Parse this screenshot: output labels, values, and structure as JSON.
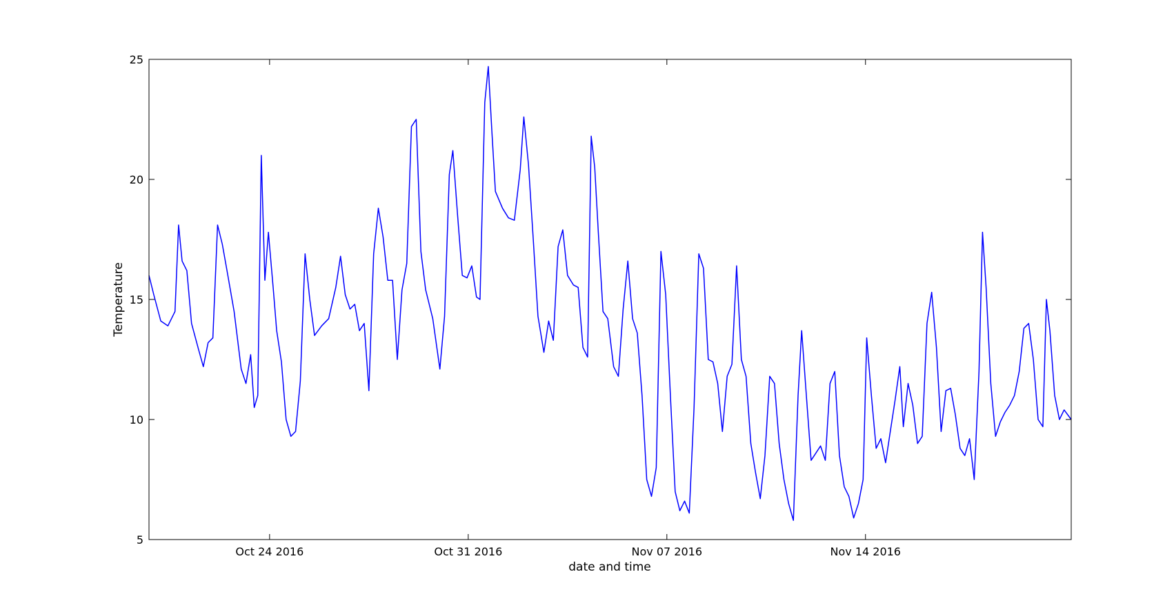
{
  "chart_data": {
    "type": "line",
    "title": "",
    "xlabel": "date and time",
    "ylabel": "Temperature",
    "xlim": [
      "2016-10-19T18:00",
      "2016-11-21T06:00"
    ],
    "ylim": [
      5,
      25
    ],
    "y_ticks": [
      5,
      10,
      15,
      20,
      25
    ],
    "x_ticks": [
      {
        "date": "2016-10-24",
        "label": "Oct 24 2016"
      },
      {
        "date": "2016-10-31",
        "label": "Oct 31 2016"
      },
      {
        "date": "2016-11-07",
        "label": "Nov 07 2016"
      },
      {
        "date": "2016-11-14",
        "label": "Nov 14 2016"
      }
    ],
    "grid": false,
    "legend": "none",
    "series": [
      {
        "color": "#0000ff",
        "points": [
          [
            "2016-10-19T18:00",
            16.0
          ],
          [
            "2016-10-19T22:00",
            15.2
          ],
          [
            "2016-10-20T04:00",
            14.1
          ],
          [
            "2016-10-20T10:00",
            13.9
          ],
          [
            "2016-10-20T16:00",
            14.5
          ],
          [
            "2016-10-20T19:00",
            18.1
          ],
          [
            "2016-10-20T22:00",
            16.6
          ],
          [
            "2016-10-21T02:00",
            16.2
          ],
          [
            "2016-10-21T06:00",
            14.0
          ],
          [
            "2016-10-21T12:00",
            12.9
          ],
          [
            "2016-10-21T16:00",
            12.2
          ],
          [
            "2016-10-21T20:00",
            13.2
          ],
          [
            "2016-10-22T00:00",
            13.4
          ],
          [
            "2016-10-22T04:00",
            18.1
          ],
          [
            "2016-10-22T08:00",
            17.3
          ],
          [
            "2016-10-22T12:00",
            16.2
          ],
          [
            "2016-10-22T18:00",
            14.5
          ],
          [
            "2016-10-23T00:00",
            12.1
          ],
          [
            "2016-10-23T04:00",
            11.5
          ],
          [
            "2016-10-23T08:00",
            12.7
          ],
          [
            "2016-10-23T11:00",
            10.5
          ],
          [
            "2016-10-23T14:00",
            11.0
          ],
          [
            "2016-10-23T17:00",
            21.0
          ],
          [
            "2016-10-23T20:00",
            15.8
          ],
          [
            "2016-10-23T23:00",
            17.8
          ],
          [
            "2016-10-24T03:00",
            15.5
          ],
          [
            "2016-10-24T06:00",
            13.7
          ],
          [
            "2016-10-24T10:00",
            12.4
          ],
          [
            "2016-10-24T14:00",
            10.0
          ],
          [
            "2016-10-24T18:00",
            9.3
          ],
          [
            "2016-10-24T22:00",
            9.5
          ],
          [
            "2016-10-25T02:00",
            11.6
          ],
          [
            "2016-10-25T06:00",
            16.9
          ],
          [
            "2016-10-25T10:00",
            15.0
          ],
          [
            "2016-10-25T14:00",
            13.5
          ],
          [
            "2016-10-25T20:00",
            13.9
          ],
          [
            "2016-10-26T02:00",
            14.2
          ],
          [
            "2016-10-26T08:00",
            15.5
          ],
          [
            "2016-10-26T12:00",
            16.8
          ],
          [
            "2016-10-26T16:00",
            15.2
          ],
          [
            "2016-10-26T20:00",
            14.6
          ],
          [
            "2016-10-27T00:00",
            14.8
          ],
          [
            "2016-10-27T04:00",
            13.7
          ],
          [
            "2016-10-27T08:00",
            14.0
          ],
          [
            "2016-10-27T12:00",
            11.2
          ],
          [
            "2016-10-27T16:00",
            16.9
          ],
          [
            "2016-10-27T20:00",
            18.8
          ],
          [
            "2016-10-28T00:00",
            17.6
          ],
          [
            "2016-10-28T04:00",
            15.8
          ],
          [
            "2016-10-28T08:00",
            15.8
          ],
          [
            "2016-10-28T12:00",
            12.5
          ],
          [
            "2016-10-28T16:00",
            15.4
          ],
          [
            "2016-10-28T20:00",
            16.5
          ],
          [
            "2016-10-29T00:00",
            22.2
          ],
          [
            "2016-10-29T04:00",
            22.5
          ],
          [
            "2016-10-29T08:00",
            17.0
          ],
          [
            "2016-10-29T12:00",
            15.4
          ],
          [
            "2016-10-29T18:00",
            14.2
          ],
          [
            "2016-10-30T00:00",
            12.1
          ],
          [
            "2016-10-30T04:00",
            14.3
          ],
          [
            "2016-10-30T08:00",
            20.2
          ],
          [
            "2016-10-30T11:00",
            21.2
          ],
          [
            "2016-10-30T15:00",
            18.5
          ],
          [
            "2016-10-30T19:00",
            16.0
          ],
          [
            "2016-10-30T23:00",
            15.9
          ],
          [
            "2016-10-31T03:00",
            16.4
          ],
          [
            "2016-10-31T07:00",
            15.1
          ],
          [
            "2016-10-31T10:00",
            15.0
          ],
          [
            "2016-10-31T14:00",
            23.2
          ],
          [
            "2016-10-31T17:00",
            24.7
          ],
          [
            "2016-10-31T20:00",
            22.0
          ],
          [
            "2016-10-31T23:00",
            19.5
          ],
          [
            "2016-11-01T05:00",
            18.8
          ],
          [
            "2016-11-01T10:00",
            18.4
          ],
          [
            "2016-11-01T15:00",
            18.3
          ],
          [
            "2016-11-01T20:00",
            20.4
          ],
          [
            "2016-11-01T23:00",
            22.6
          ],
          [
            "2016-11-02T03:00",
            20.6
          ],
          [
            "2016-11-02T07:00",
            17.5
          ],
          [
            "2016-11-02T11:00",
            14.3
          ],
          [
            "2016-11-02T16:00",
            12.8
          ],
          [
            "2016-11-02T20:00",
            14.1
          ],
          [
            "2016-11-03T00:00",
            13.3
          ],
          [
            "2016-11-03T04:00",
            17.2
          ],
          [
            "2016-11-03T08:00",
            17.9
          ],
          [
            "2016-11-03T12:00",
            16.0
          ],
          [
            "2016-11-03T17:00",
            15.6
          ],
          [
            "2016-11-03T21:00",
            15.5
          ],
          [
            "2016-11-04T01:00",
            13.0
          ],
          [
            "2016-11-04T05:00",
            12.6
          ],
          [
            "2016-11-04T08:00",
            21.8
          ],
          [
            "2016-11-04T11:00",
            20.5
          ],
          [
            "2016-11-04T14:00",
            17.8
          ],
          [
            "2016-11-04T18:00",
            14.5
          ],
          [
            "2016-11-04T22:00",
            14.2
          ],
          [
            "2016-11-05T03:00",
            12.2
          ],
          [
            "2016-11-05T07:00",
            11.8
          ],
          [
            "2016-11-05T11:00",
            14.6
          ],
          [
            "2016-11-05T15:00",
            16.6
          ],
          [
            "2016-11-05T19:00",
            14.2
          ],
          [
            "2016-11-05T23:00",
            13.6
          ],
          [
            "2016-11-06T03:00",
            11.0
          ],
          [
            "2016-11-06T07:00",
            7.5
          ],
          [
            "2016-11-06T11:00",
            6.8
          ],
          [
            "2016-11-06T15:00",
            8.0
          ],
          [
            "2016-11-06T19:00",
            17.0
          ],
          [
            "2016-11-06T23:00",
            15.2
          ],
          [
            "2016-11-07T03:00",
            11.0
          ],
          [
            "2016-11-07T07:00",
            7.0
          ],
          [
            "2016-11-07T11:00",
            6.2
          ],
          [
            "2016-11-07T15:00",
            6.6
          ],
          [
            "2016-11-07T19:00",
            6.1
          ],
          [
            "2016-11-07T23:00",
            10.5
          ],
          [
            "2016-11-08T03:00",
            16.9
          ],
          [
            "2016-11-08T07:00",
            16.3
          ],
          [
            "2016-11-08T11:00",
            12.5
          ],
          [
            "2016-11-08T15:00",
            12.4
          ],
          [
            "2016-11-08T19:00",
            11.5
          ],
          [
            "2016-11-08T23:00",
            9.5
          ],
          [
            "2016-11-09T03:00",
            11.8
          ],
          [
            "2016-11-09T07:00",
            12.3
          ],
          [
            "2016-11-09T11:00",
            16.4
          ],
          [
            "2016-11-09T15:00",
            12.5
          ],
          [
            "2016-11-09T19:00",
            11.8
          ],
          [
            "2016-11-09T23:00",
            9.0
          ],
          [
            "2016-11-10T03:00",
            7.8
          ],
          [
            "2016-11-10T07:00",
            6.7
          ],
          [
            "2016-11-10T11:00",
            8.5
          ],
          [
            "2016-11-10T15:00",
            11.8
          ],
          [
            "2016-11-10T19:00",
            11.5
          ],
          [
            "2016-11-10T23:00",
            9.0
          ],
          [
            "2016-11-11T03:00",
            7.5
          ],
          [
            "2016-11-11T07:00",
            6.5
          ],
          [
            "2016-11-11T11:00",
            5.8
          ],
          [
            "2016-11-11T15:00",
            11.0
          ],
          [
            "2016-11-11T18:00",
            13.7
          ],
          [
            "2016-11-11T22:00",
            11.0
          ],
          [
            "2016-11-12T02:00",
            8.3
          ],
          [
            "2016-11-12T06:00",
            8.6
          ],
          [
            "2016-11-12T10:00",
            8.9
          ],
          [
            "2016-11-12T14:00",
            8.3
          ],
          [
            "2016-11-12T18:00",
            11.5
          ],
          [
            "2016-11-12T22:00",
            12.0
          ],
          [
            "2016-11-13T02:00",
            8.5
          ],
          [
            "2016-11-13T06:00",
            7.2
          ],
          [
            "2016-11-13T10:00",
            6.8
          ],
          [
            "2016-11-13T14:00",
            5.9
          ],
          [
            "2016-11-13T18:00",
            6.5
          ],
          [
            "2016-11-13T22:00",
            7.5
          ],
          [
            "2016-11-14T01:00",
            13.4
          ],
          [
            "2016-11-14T05:00",
            11.0
          ],
          [
            "2016-11-14T09:00",
            8.8
          ],
          [
            "2016-11-14T13:00",
            9.2
          ],
          [
            "2016-11-14T17:00",
            8.2
          ],
          [
            "2016-11-14T21:00",
            9.5
          ],
          [
            "2016-11-15T01:00",
            10.8
          ],
          [
            "2016-11-15T05:00",
            12.2
          ],
          [
            "2016-11-15T08:00",
            9.7
          ],
          [
            "2016-11-15T12:00",
            11.5
          ],
          [
            "2016-11-15T16:00",
            10.6
          ],
          [
            "2016-11-15T20:00",
            9.0
          ],
          [
            "2016-11-16T00:00",
            9.3
          ],
          [
            "2016-11-16T04:00",
            14.0
          ],
          [
            "2016-11-16T08:00",
            15.3
          ],
          [
            "2016-11-16T12:00",
            13.0
          ],
          [
            "2016-11-16T16:00",
            9.5
          ],
          [
            "2016-11-16T20:00",
            11.2
          ],
          [
            "2016-11-17T00:00",
            11.3
          ],
          [
            "2016-11-17T04:00",
            10.2
          ],
          [
            "2016-11-17T08:00",
            8.8
          ],
          [
            "2016-11-17T12:00",
            8.5
          ],
          [
            "2016-11-17T16:00",
            9.2
          ],
          [
            "2016-11-17T20:00",
            7.5
          ],
          [
            "2016-11-18T00:00",
            12.0
          ],
          [
            "2016-11-18T03:00",
            17.8
          ],
          [
            "2016-11-18T06:00",
            15.5
          ],
          [
            "2016-11-18T10:00",
            11.5
          ],
          [
            "2016-11-18T14:00",
            9.3
          ],
          [
            "2016-11-18T18:00",
            9.9
          ],
          [
            "2016-11-18T22:00",
            10.3
          ],
          [
            "2016-11-19T02:00",
            10.6
          ],
          [
            "2016-11-19T06:00",
            11.0
          ],
          [
            "2016-11-19T10:00",
            12.0
          ],
          [
            "2016-11-19T14:00",
            13.8
          ],
          [
            "2016-11-19T18:00",
            14.0
          ],
          [
            "2016-11-19T22:00",
            12.5
          ],
          [
            "2016-11-20T02:00",
            10.0
          ],
          [
            "2016-11-20T06:00",
            9.7
          ],
          [
            "2016-11-20T09:00",
            15.0
          ],
          [
            "2016-11-20T12:00",
            13.7
          ],
          [
            "2016-11-20T16:00",
            11.0
          ],
          [
            "2016-11-20T20:00",
            10.0
          ],
          [
            "2016-11-21T00:00",
            10.4
          ],
          [
            "2016-11-21T06:00",
            10.0
          ]
        ]
      }
    ]
  }
}
